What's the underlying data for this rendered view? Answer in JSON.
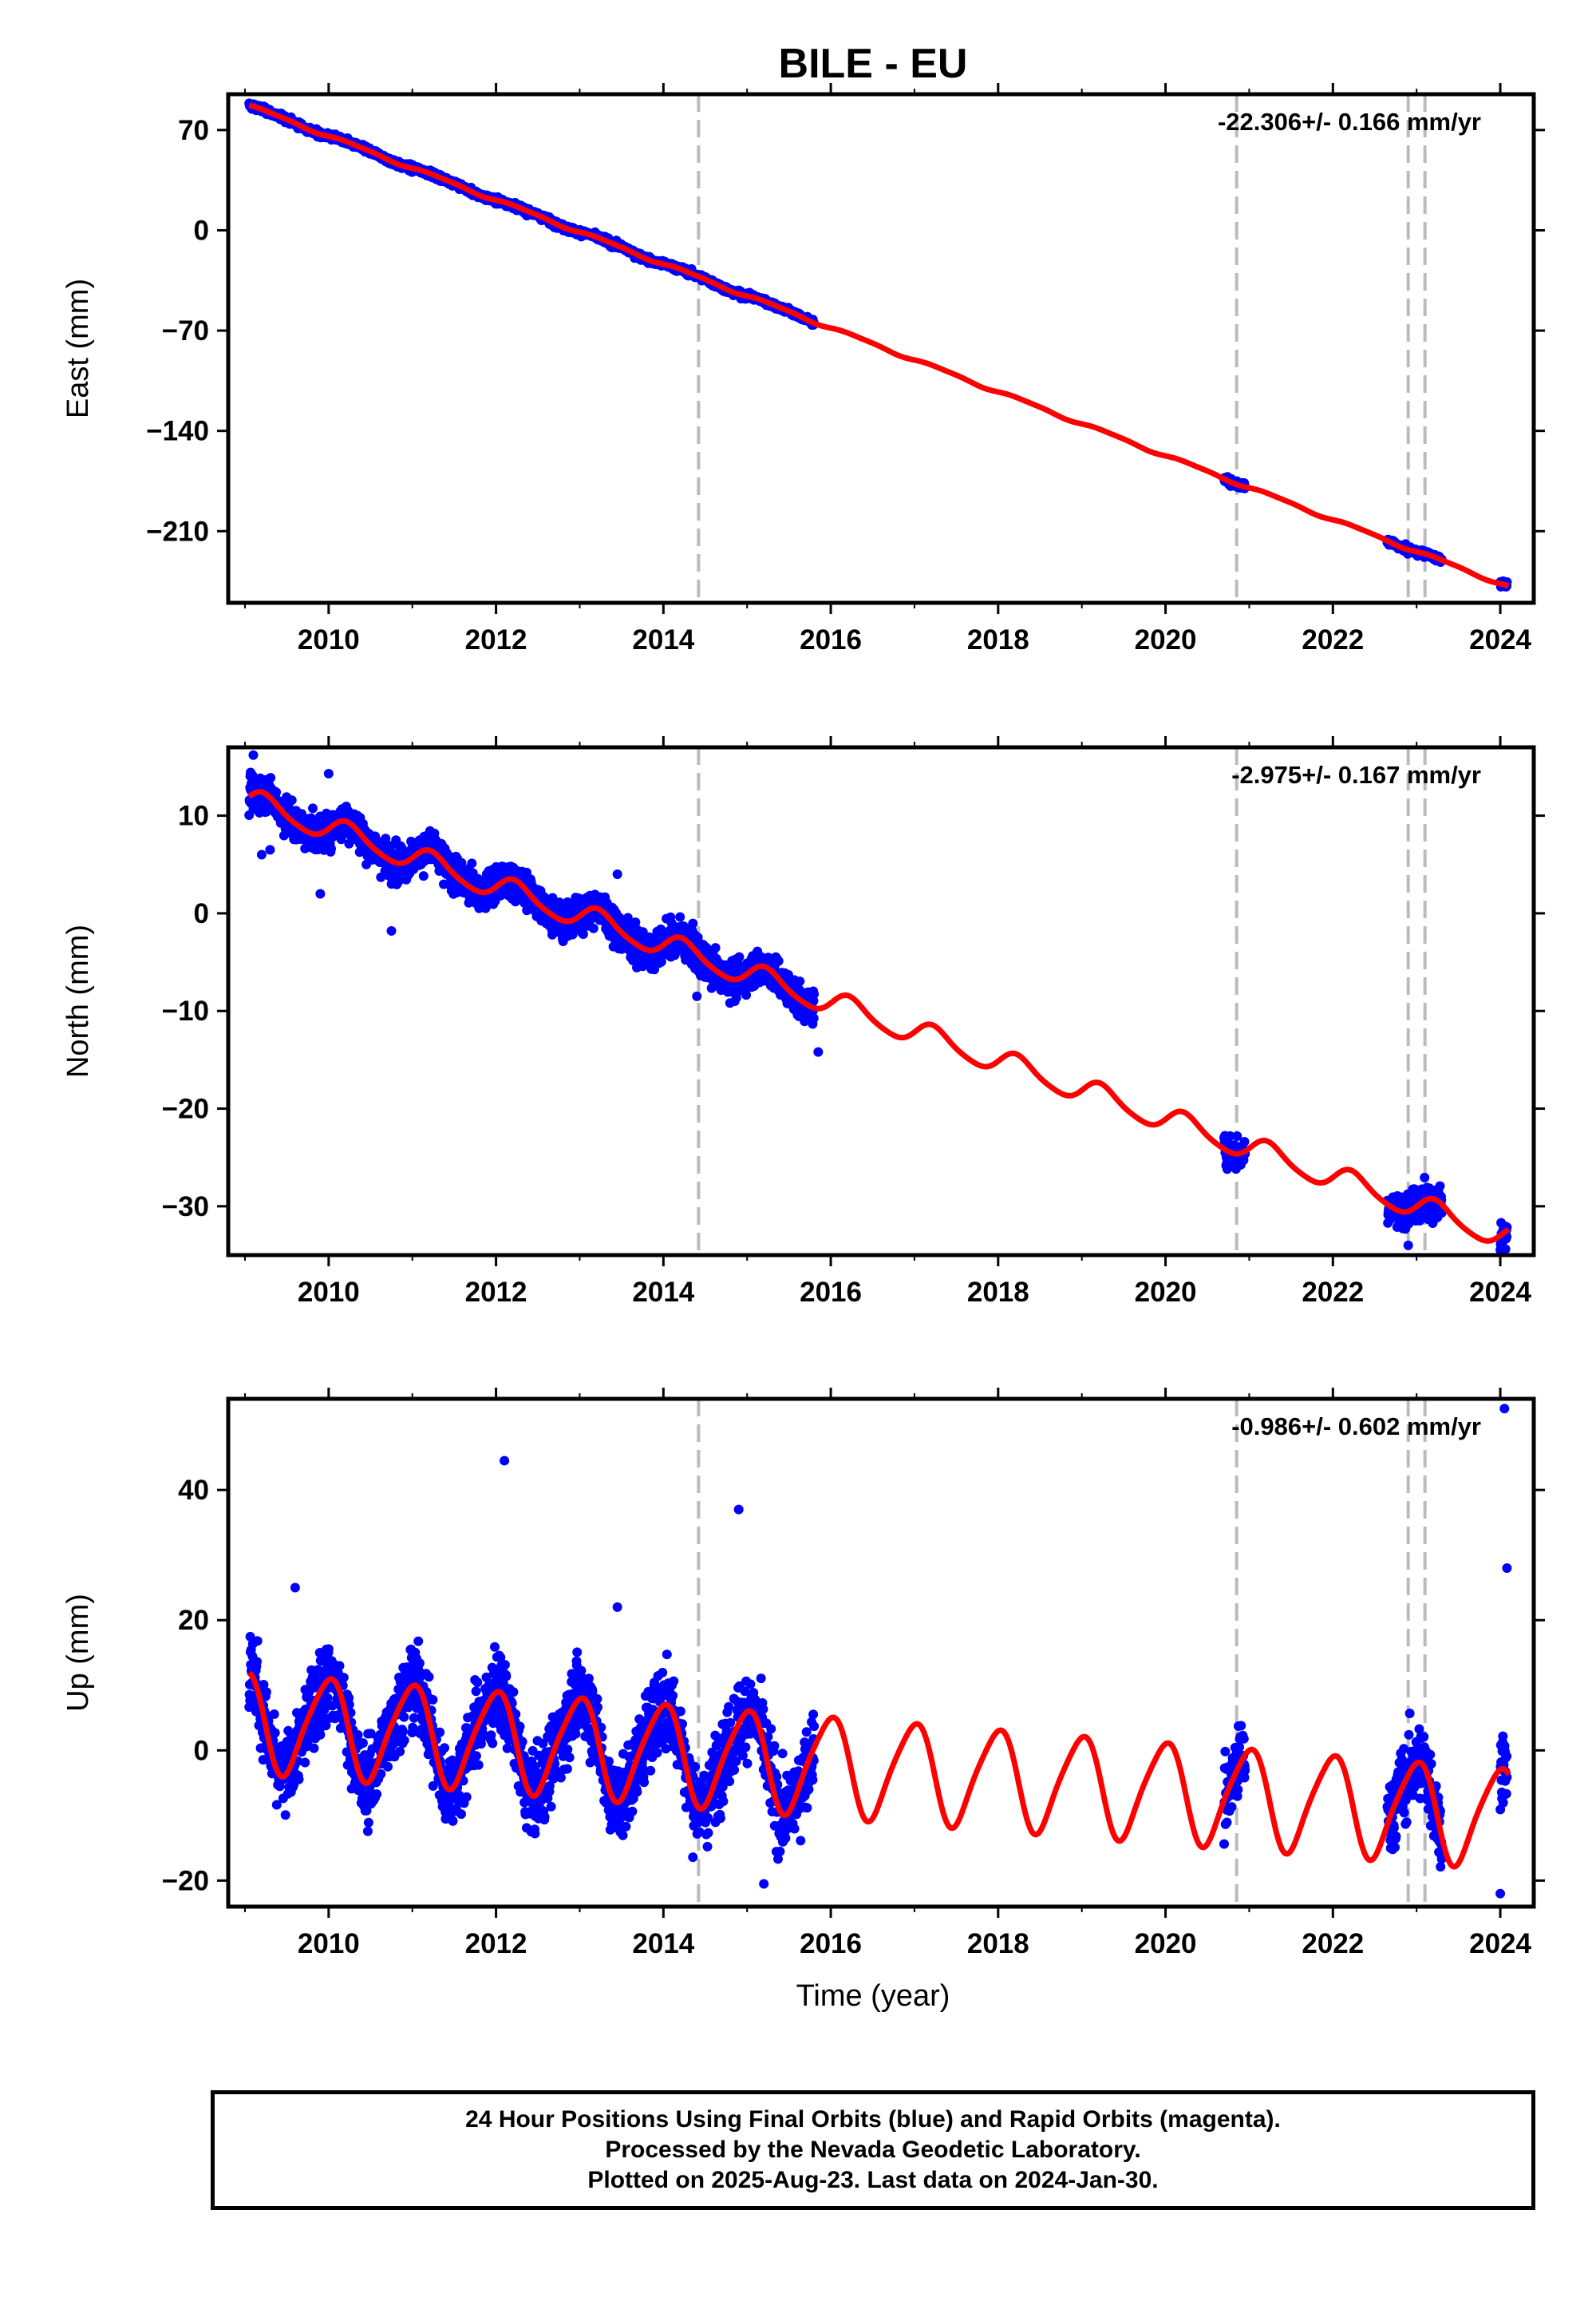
{
  "title": "BILE - EU",
  "colors": {
    "data": "#0000ff",
    "model": "#ff0000",
    "marker": "#bbbbbb",
    "frame": "#000000"
  },
  "xlabel": "Time (year)",
  "xlim": [
    2008.8,
    2024.4
  ],
  "xticks": [
    2010,
    2012,
    2014,
    2016,
    2018,
    2020,
    2022,
    2024
  ],
  "marker_years": [
    2014.42,
    2020.85,
    2022.9,
    2023.1
  ],
  "footer": {
    "line1": "24 Hour Positions Using Final Orbits (blue) and Rapid Orbits (magenta).",
    "line2": "Processed by the Nevada Geodetic Laboratory.",
    "line3": "Plotted on 2025-Aug-23. Last data on 2024-Jan-30."
  },
  "chart_data": [
    {
      "type": "scatter",
      "component": "east",
      "ylabel": "East (mm)",
      "rate": "-22.306+/- 0.166 mm/yr",
      "ylim": [
        -260,
        95
      ],
      "yticks": [
        70,
        0,
        -70,
        -140,
        -210
      ],
      "model": {
        "ref_year": 2009.05,
        "intercept": 87,
        "slope": -22.306,
        "annual_amp": 1.0,
        "annual_phase": 0,
        "semiannual_amp": 0.3,
        "semiannual_phase": 1.0
      },
      "noise": 1.5,
      "outliers": [],
      "segments": [
        [
          2009.05,
          2015.8
        ],
        [
          2020.7,
          2020.95
        ],
        [
          2022.65,
          2023.3
        ],
        [
          2024.0,
          2024.08
        ]
      ]
    },
    {
      "type": "scatter",
      "component": "north",
      "ylabel": "North (mm)",
      "rate": "-2.975+/- 0.167 mm/yr",
      "ylim": [
        -35,
        17
      ],
      "yticks": [
        10,
        0,
        -10,
        -20,
        -30
      ],
      "model": {
        "ref_year": 2009.05,
        "intercept": 11.5,
        "slope": -2.975,
        "annual_amp": 1.2,
        "annual_phase": 0.4,
        "semiannual_amp": 0.2,
        "semiannual_phase": 0
      },
      "noise": 1.3,
      "outliers": [
        {
          "x": 2009.1,
          "y": 16.2
        },
        {
          "x": 2009.2,
          "y": 6.0
        },
        {
          "x": 2009.3,
          "y": 6.5
        },
        {
          "x": 2009.9,
          "y": 2.0
        },
        {
          "x": 2010.0,
          "y": 14.3
        },
        {
          "x": 2010.75,
          "y": -1.8
        },
        {
          "x": 2013.45,
          "y": 4.0
        },
        {
          "x": 2014.4,
          "y": -8.5
        },
        {
          "x": 2015.85,
          "y": -14.2
        },
        {
          "x": 2022.9,
          "y": -34.0
        }
      ],
      "segments": [
        [
          2009.05,
          2015.8
        ],
        [
          2020.7,
          2020.95
        ],
        [
          2022.65,
          2023.3
        ],
        [
          2024.0,
          2024.08
        ]
      ]
    },
    {
      "type": "scatter",
      "component": "up",
      "ylabel": "Up (mm)",
      "rate": "-0.986+/- 0.602 mm/yr",
      "ylim": [
        -24,
        54
      ],
      "yticks": [
        40,
        20,
        0,
        -20
      ],
      "model": {
        "ref_year": 2009.05,
        "intercept": 4.5,
        "slope": -0.986,
        "annual_amp": 7.5,
        "annual_phase": 2.0,
        "semiannual_amp": 1.2,
        "semiannual_phase": 0.5
      },
      "noise": 4.2,
      "outliers": [
        {
          "x": 2009.6,
          "y": 25.0
        },
        {
          "x": 2012.1,
          "y": 44.5
        },
        {
          "x": 2013.45,
          "y": 22.0
        },
        {
          "x": 2014.9,
          "y": 37.0
        },
        {
          "x": 2015.2,
          "y": -20.5
        },
        {
          "x": 2024.05,
          "y": 52.5
        },
        {
          "x": 2024.08,
          "y": 28.0
        },
        {
          "x": 2024.0,
          "y": -22.0
        }
      ],
      "segments": [
        [
          2009.05,
          2015.8
        ],
        [
          2020.7,
          2020.95
        ],
        [
          2022.65,
          2023.3
        ],
        [
          2024.0,
          2024.08
        ]
      ]
    }
  ]
}
